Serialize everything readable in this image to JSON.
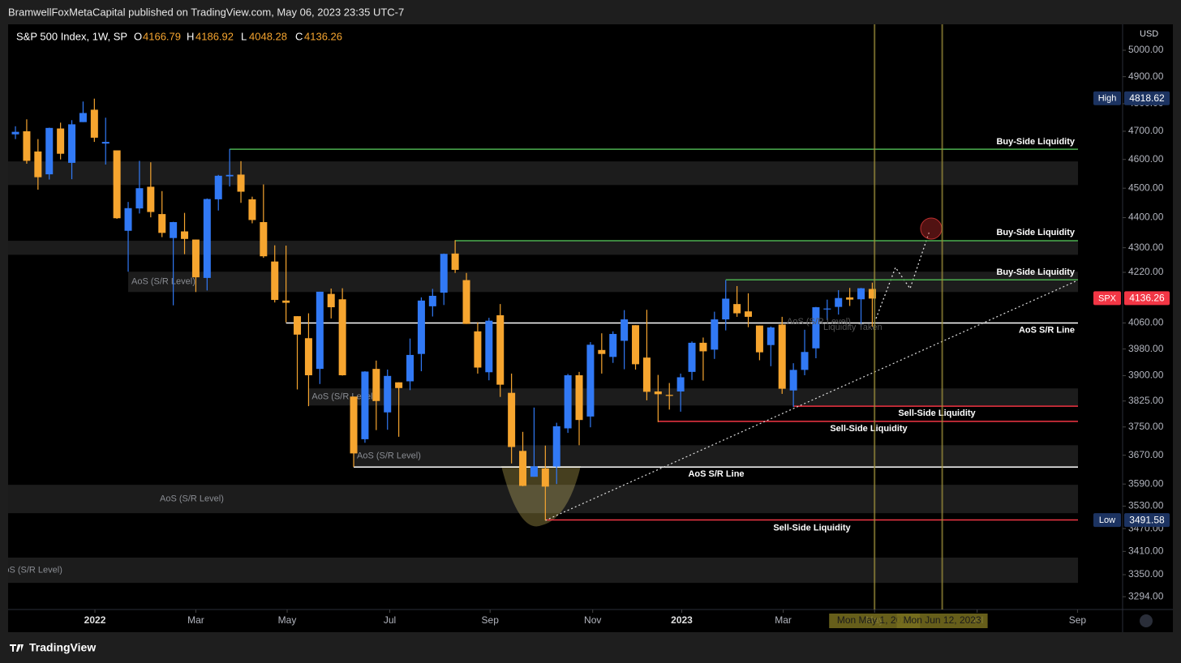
{
  "header": {
    "publisher": "BramwellFoxMetaCapital published on TradingView.com, May 06, 2023 23:35 UTC-7",
    "brand": "TradingView"
  },
  "chart_data": {
    "type": "candlestick",
    "title": "S&P 500 Index, 1W, SP",
    "ohlc_labels": [
      "O",
      "H",
      "L",
      "C"
    ],
    "currency": "USD",
    "open": [
      4689,
      4700,
      4628,
      4548,
      4710,
      4588,
      4733,
      4778,
      4656,
      4632,
      4356,
      4431,
      4505,
      4412,
      4332,
      4354,
      4327,
      4202,
      4462,
      4541,
      4547,
      4462,
      4385,
      4255,
      4130,
      4081,
      4013,
      3920,
      4151,
      4134,
      3838,
      3715,
      3920,
      3792,
      3880,
      3883,
      3965,
      4112,
      4155,
      4281,
      4195,
      4034,
      3910,
      4084,
      3849,
      3682,
      3610,
      3633,
      3638,
      3746,
      3901,
      3780,
      3977,
      3956,
      4005,
      4053,
      3954,
      3853,
      3843,
      3853,
      3911,
      3999,
      3978,
      4071,
      4119,
      4096,
      4052,
      3992,
      4055,
      3856,
      3917,
      3982,
      4102,
      4110,
      4140,
      4134,
      4166.79
    ],
    "high": [
      4718,
      4743,
      4672,
      4713,
      4731,
      4740,
      4808,
      4818.62,
      4749,
      4632,
      4453,
      4595,
      4590,
      4490,
      4386,
      4416,
      4327,
      4465,
      4546,
      4637,
      4594,
      4471,
      4513,
      4308,
      4307,
      4081,
      4090,
      4158,
      4168,
      4169,
      3838,
      3913,
      3945,
      3918,
      3880,
      4012,
      4140,
      4167,
      4281,
      4325,
      4218,
      4062,
      4076,
      4119,
      3906,
      3736,
      3806,
      3697,
      3762,
      3905,
      3911,
      4001,
      4028,
      4034,
      4100,
      4053,
      4101,
      3902,
      3878,
      3906,
      4003,
      4015,
      4095,
      4195,
      4176,
      4153,
      4052,
      4049,
      4079,
      3937,
      4039,
      4110,
      4133,
      4163,
      4170,
      4170,
      4186.92
    ],
    "low": [
      4672,
      4585,
      4495,
      4530,
      4600,
      4531,
      4733,
      4662,
      4582,
      4396,
      4222,
      4414,
      4401,
      4335,
      4115,
      4279,
      4157,
      4162,
      4424,
      4506,
      4450,
      4381,
      4267,
      4124,
      4062,
      3859,
      3810,
      3875,
      4074,
      3900,
      3637,
      3705,
      3741,
      3742,
      3722,
      3857,
      3913,
      4080,
      4116,
      4218,
      4057,
      3906,
      3886,
      3837,
      3647,
      3584,
      3610,
      3491.58,
      3590,
      3733,
      3698,
      3749,
      3906,
      3938,
      3919,
      3918,
      3827,
      3764,
      3800,
      3794,
      3887,
      3885,
      3950,
      4037,
      4079,
      4047,
      3946,
      3928,
      3846,
      3808,
      3901,
      3952,
      4069,
      4086,
      4113,
      4049,
      4048.28
    ],
    "close": [
      4698,
      4595,
      4538,
      4712,
      4620,
      4725,
      4766,
      4677,
      4662,
      4398,
      4432,
      4500,
      4419,
      4349,
      4385,
      4329,
      4204,
      4463,
      4543,
      4546,
      4488,
      4392,
      4272,
      4132,
      4123,
      4024,
      3901,
      4158,
      4109,
      3901,
      3675,
      3912,
      3825,
      3899,
      3863,
      3962,
      4130,
      4145,
      4280,
      4228,
      4057,
      3924,
      4067,
      3873,
      3693,
      3585,
      3639,
      3583,
      3752,
      3901,
      3770,
      3993,
      3965,
      4026,
      4071,
      3934,
      3852,
      3845,
      3840,
      3895,
      3999,
      3973,
      4071,
      4136,
      4090,
      4079,
      3970,
      4046,
      3861,
      3917,
      3971,
      4109,
      4105,
      4138,
      4133,
      4169,
      4136.26
    ],
    "up_color": "#3179f5",
    "down_color": "#f6a52f",
    "log_scale": true,
    "ylim": [
      3262,
      5100
    ],
    "yticks": [
      {
        "value": 5000,
        "label": "5000.00"
      },
      {
        "value": 4900,
        "label": "4900.00"
      },
      {
        "value": 4800,
        "label": "4800.00"
      },
      {
        "value": 4700,
        "label": "4700.00"
      },
      {
        "value": 4600,
        "label": "4600.00"
      },
      {
        "value": 4500,
        "label": "4500.00"
      },
      {
        "value": 4400,
        "label": "4400.00"
      },
      {
        "value": 4300,
        "label": "4300.00"
      },
      {
        "value": 4220,
        "label": "4220.00"
      },
      {
        "value": 4060,
        "label": "4060.00"
      },
      {
        "value": 3980,
        "label": "3980.00"
      },
      {
        "value": 3900,
        "label": "3900.00"
      },
      {
        "value": 3825,
        "label": "3825.00"
      },
      {
        "value": 3750,
        "label": "3750.00"
      },
      {
        "value": 3670,
        "label": "3670.00"
      },
      {
        "value": 3590,
        "label": "3590.00"
      },
      {
        "value": 3530,
        "label": "3530.00"
      },
      {
        "value": 3470,
        "label": "3470.00"
      },
      {
        "value": 3410,
        "label": "3410.00"
      },
      {
        "value": 3350,
        "label": "3350.00"
      },
      {
        "value": 3294,
        "label": "3294.00"
      }
    ],
    "xlim": [
      -0.65,
      98.2
    ],
    "xticks": [
      {
        "value": 7.05,
        "label": "2022"
      },
      {
        "value": 16.0,
        "label": "Mar"
      },
      {
        "value": 24.1,
        "label": "May"
      },
      {
        "value": 33.2,
        "label": "Jul"
      },
      {
        "value": 42.1,
        "label": "Sep"
      },
      {
        "value": 51.2,
        "label": "Nov"
      },
      {
        "value": 59.1,
        "label": "2023"
      },
      {
        "value": 68.1,
        "label": "Mar"
      },
      {
        "value": 76.2,
        "label": "May"
      },
      {
        "value": 85.3,
        "label": "Jul"
      },
      {
        "value": 94.2,
        "label": "Sep"
      }
    ],
    "price_tags": {
      "high": "High",
      "last": "SPX",
      "low": "Low"
    },
    "zones": [
      {
        "low": 4511,
        "high": 4593,
        "start": -0.65
      },
      {
        "low": 4277,
        "high": 4323,
        "start": -0.65
      },
      {
        "low": 4157,
        "high": 4222,
        "start": 10,
        "label": "AoS (S/R Level)"
      },
      {
        "low": 3812,
        "high": 3862,
        "start": 26,
        "label": "AoS (S/R Level)"
      },
      {
        "low": 3637,
        "high": 3698,
        "start": 30,
        "label": "AoS (S/R Level)"
      },
      {
        "low": 3511,
        "high": 3588,
        "start": -0.65,
        "label": "AoS (S/R Level)"
      },
      {
        "low": 3329,
        "high": 3394,
        "start": -0.65,
        "label": "AoS (S/R Level)"
      }
    ],
    "lines": [
      {
        "price": 4636,
        "start": 19,
        "label": "Buy-Side Liquidity",
        "color": "#4caf50"
      },
      {
        "price": 4323,
        "start": 39,
        "label": "Buy-Side Liquidity",
        "color": "#4caf50"
      },
      {
        "price": 4196,
        "start": 63,
        "label": "Buy-Side Liquidity",
        "color": "#4caf50"
      },
      {
        "price": 4060,
        "start": 24,
        "label": "AoS S/R Line",
        "color": "#ffffff"
      },
      {
        "price": 3637,
        "start": 30,
        "label": "AoS S/R Line",
        "color": "#ffffff"
      },
      {
        "price": 3810,
        "start": 69,
        "label": "Sell-Side Liquidity",
        "color": "#f23645"
      },
      {
        "price": 3766,
        "start": 57,
        "label": "Sell-Side Liquidity",
        "color": "#f23645"
      },
      {
        "price": 3493,
        "start": 47,
        "label": "Sell-Side Liquidity",
        "color": "#f23645"
      }
    ],
    "trend_line": {
      "x": [
        47,
        94.2
      ],
      "y": [
        3491.58,
        4194
      ]
    },
    "vertical_lines": [
      {
        "x": 76.2,
        "label": "Mon May 1, 2023"
      },
      {
        "x": 82.2,
        "label": "Mon Jun 12, 2023"
      }
    ],
    "faint_labels": [
      "AoS (S/R Level)",
      "Liquidity Taken"
    ]
  }
}
